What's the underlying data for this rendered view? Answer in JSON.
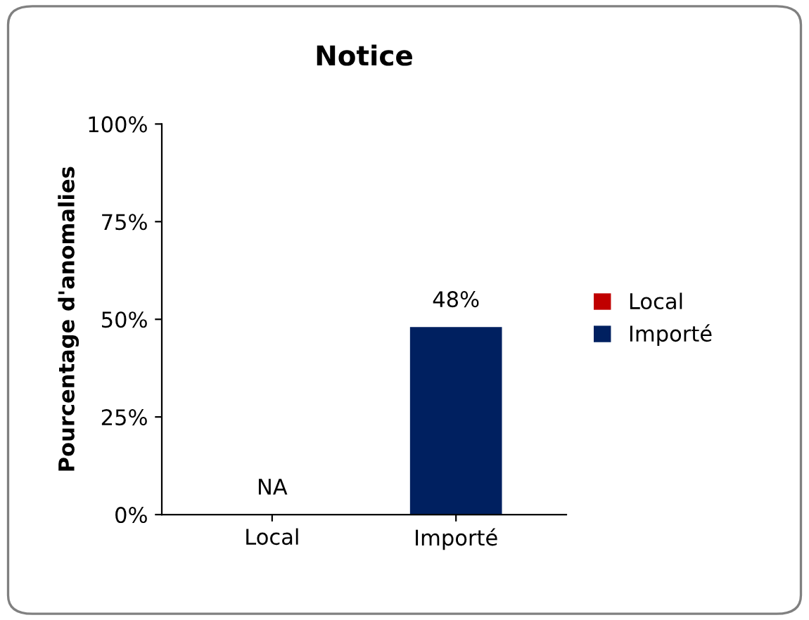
{
  "chart_data": {
    "type": "bar",
    "title": "Notice",
    "ylabel": "Pourcentage d'anomalies",
    "categories": [
      "Local",
      "Importé"
    ],
    "series": [
      {
        "name": "Local",
        "color": "#c00000",
        "values": [
          null,
          null
        ],
        "value_labels": [
          "NA",
          null
        ]
      },
      {
        "name": "Importé",
        "color": "#002060",
        "values": [
          null,
          48
        ],
        "value_labels": [
          null,
          "48%"
        ]
      }
    ],
    "ylim": [
      0,
      100
    ],
    "yticks": [
      {
        "value": 0,
        "label": "0%"
      },
      {
        "value": 25,
        "label": "25%"
      },
      {
        "value": 50,
        "label": "50%"
      },
      {
        "value": 75,
        "label": "75%"
      },
      {
        "value": 100,
        "label": "100%"
      }
    ],
    "grid": false,
    "legend": "right"
  }
}
